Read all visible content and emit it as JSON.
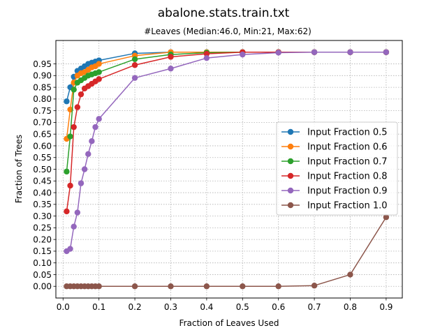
{
  "chart_data": {
    "type": "line",
    "title": "abalone.stats.train.txt",
    "subtitle": "#Leaves (Median:46.0, Min:21, Max:62)",
    "xlabel": "Fraction of Leaves Used",
    "ylabel": "Fraction of Trees",
    "xlim": [
      -0.02,
      0.945
    ],
    "ylim": [
      -0.05,
      1.05
    ],
    "xticks": [
      "0.0",
      "0.1",
      "0.2",
      "0.3",
      "0.4",
      "0.5",
      "0.6",
      "0.7",
      "0.8",
      "0.9"
    ],
    "yticks": [
      "0.00",
      "0.05",
      "0.10",
      "0.15",
      "0.20",
      "0.25",
      "0.30",
      "0.35",
      "0.40",
      "0.45",
      "0.50",
      "0.55",
      "0.60",
      "0.65",
      "0.70",
      "0.75",
      "0.80",
      "0.85",
      "0.90",
      "0.95"
    ],
    "grid": true,
    "legend_position": "center-right",
    "x": [
      0.01,
      0.02,
      0.03,
      0.04,
      0.05,
      0.06,
      0.07,
      0.08,
      0.09,
      0.1,
      0.2,
      0.3,
      0.4,
      0.5,
      0.6,
      0.7,
      0.8,
      0.9
    ],
    "series": [
      {
        "name": "Input Fraction 0.5",
        "color": "#1f77b4",
        "values": [
          0.79,
          0.85,
          0.895,
          0.92,
          0.93,
          0.94,
          0.95,
          0.955,
          0.96,
          0.965,
          0.995,
          1.0,
          1.0,
          1.0,
          1.0,
          1.0,
          1.0,
          1.0
        ]
      },
      {
        "name": "Input Fraction 0.6",
        "color": "#ff7f0e",
        "values": [
          0.63,
          0.755,
          0.87,
          0.9,
          0.91,
          0.915,
          0.925,
          0.935,
          0.94,
          0.95,
          0.985,
          1.0,
          1.0,
          1.0,
          1.0,
          1.0,
          1.0,
          1.0
        ]
      },
      {
        "name": "Input Fraction 0.7",
        "color": "#2ca02c",
        "values": [
          0.49,
          0.64,
          0.84,
          0.87,
          0.88,
          0.89,
          0.9,
          0.905,
          0.91,
          0.915,
          0.97,
          0.99,
          0.998,
          1.0,
          1.0,
          1.0,
          1.0,
          1.0
        ]
      },
      {
        "name": "Input Fraction 0.8",
        "color": "#d62728",
        "values": [
          0.32,
          0.43,
          0.68,
          0.765,
          0.82,
          0.845,
          0.855,
          0.865,
          0.875,
          0.885,
          0.945,
          0.98,
          0.993,
          1.0,
          1.0,
          1.0,
          1.0,
          1.0
        ]
      },
      {
        "name": "Input Fraction 0.9",
        "color": "#9467bd",
        "values": [
          0.15,
          0.16,
          0.255,
          0.315,
          0.44,
          0.5,
          0.565,
          0.62,
          0.68,
          0.715,
          0.89,
          0.93,
          0.975,
          0.99,
          0.998,
          1.0,
          1.0,
          1.0
        ]
      },
      {
        "name": "Input Fraction 1.0",
        "color": "#8c564b",
        "values": [
          0.0,
          0.0,
          0.0,
          0.0,
          0.0,
          0.0,
          0.0,
          0.0,
          0.0,
          0.0,
          0.0,
          0.0,
          0.0,
          0.0,
          0.0,
          0.003,
          0.05,
          0.295
        ]
      }
    ]
  }
}
